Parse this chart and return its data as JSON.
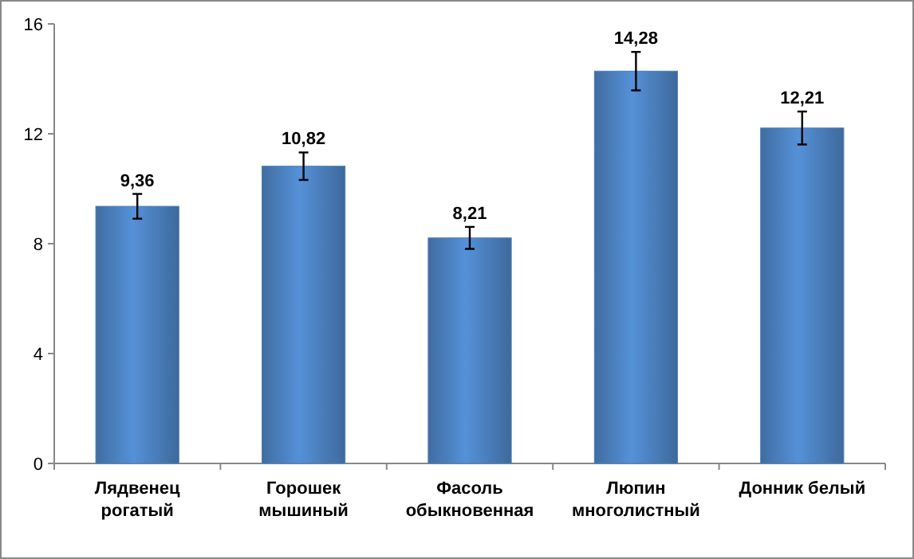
{
  "chart_data": {
    "type": "bar",
    "categories": [
      "Лядвенец рогатый",
      "Горошек мышиный",
      "Фасоль обыкновенная",
      "Люпин многолистный",
      "Донник белый"
    ],
    "values": [
      9.36,
      10.82,
      8.21,
      14.28,
      12.21
    ],
    "color": "#4a7ebb",
    "errors": [
      0.45,
      0.5,
      0.4,
      0.7,
      0.6
    ],
    "value_labels": [
      "9,36",
      "10,82",
      "8,21",
      "14,28",
      "12,21"
    ],
    "ylim": [
      0,
      16
    ],
    "yticks": [
      0,
      4,
      8,
      12,
      16
    ],
    "grid": false
  }
}
